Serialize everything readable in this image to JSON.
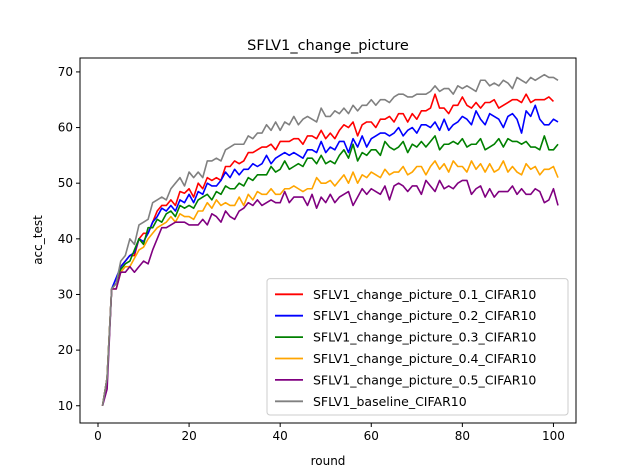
{
  "chart_data": {
    "type": "line",
    "title": "SFLV1_change_picture",
    "xlabel": "round",
    "ylabel": "acc_test",
    "xlim": [
      -3.95,
      104.95
    ],
    "ylim": [
      6.9,
      72.5
    ],
    "xticks": [
      0,
      20,
      40,
      60,
      80,
      100
    ],
    "yticks": [
      10,
      20,
      30,
      40,
      50,
      60,
      70
    ],
    "grid": false,
    "legend_position": "lower right",
    "x_start": 1,
    "x_step": 1,
    "series": [
      {
        "name": "SFLV1_change_picture_0.1_CIFAR10",
        "color": "#ff0000",
        "values": [
          10,
          15,
          31,
          32,
          35,
          36,
          37,
          37,
          40,
          41,
          41,
          43,
          45,
          46,
          46,
          47,
          46,
          48.5,
          48.2,
          49,
          47.5,
          50,
          49,
          51,
          50.5,
          51,
          50.5,
          53,
          53,
          54,
          53.5,
          54,
          55.5,
          55.5,
          56,
          56.5,
          56.5,
          57,
          56,
          57.5,
          57.5,
          57.5,
          58,
          58,
          57,
          58.5,
          58.5,
          58,
          59.5,
          58,
          59,
          58,
          59.5,
          60.5,
          60,
          61,
          58.5,
          60.5,
          61,
          61,
          60,
          61.5,
          61.5,
          62,
          61,
          62.5,
          62.5,
          61,
          62.5,
          61.5,
          63,
          63,
          63.5,
          66,
          63.5,
          63.5,
          62.5,
          64,
          64,
          65.5,
          64,
          63.5,
          64.5,
          63.5,
          64.5,
          64.5,
          65,
          63.5,
          64,
          64.5,
          65,
          65,
          64.5,
          66,
          64.5,
          65,
          65,
          65,
          65.5,
          64.7
        ]
      },
      {
        "name": "SFLV1_change_picture_0.2_CIFAR10",
        "color": "#0000ff",
        "values": [
          10,
          15,
          31,
          33,
          35,
          36,
          37,
          37.5,
          40,
          39.5,
          41,
          43,
          44,
          45.5,
          45,
          46,
          45,
          47,
          46.5,
          48,
          46.5,
          48.5,
          48,
          50,
          49.5,
          49.5,
          50.5,
          52,
          51,
          52.5,
          51.5,
          52.5,
          52.5,
          53.5,
          53,
          53.5,
          55,
          53.5,
          54.5,
          55,
          55.5,
          55,
          55.5,
          55,
          54.5,
          56,
          56,
          55.5,
          57.5,
          55.5,
          56.5,
          56,
          57.5,
          57.5,
          55.5,
          58,
          56.5,
          58.5,
          56.5,
          58,
          58.5,
          59,
          59,
          58.5,
          59,
          60,
          58.5,
          59.5,
          60,
          59,
          60.5,
          60.5,
          60,
          61,
          59.5,
          61.5,
          59.5,
          60.5,
          61,
          62,
          61.5,
          60.5,
          63,
          61.5,
          60.5,
          62.5,
          62,
          61.5,
          60,
          62,
          62.5,
          61.5,
          59,
          63,
          62,
          64,
          61.5,
          60.5,
          60.5,
          61.5,
          61
        ]
      },
      {
        "name": "SFLV1_change_picture_0.3_CIFAR10",
        "color": "#008000",
        "values": [
          10,
          15,
          31,
          32,
          34.5,
          35.5,
          36,
          38,
          40,
          39,
          42,
          42,
          43.5,
          43,
          44.5,
          45,
          44,
          46,
          45.5,
          46,
          45.5,
          47,
          47.5,
          48,
          47,
          48.5,
          48,
          49.5,
          49,
          49,
          50,
          49.5,
          51,
          50.5,
          51.5,
          51.5,
          51.5,
          53,
          52,
          52.5,
          54,
          52.5,
          53,
          53.5,
          53,
          54.5,
          54.5,
          53.5,
          55,
          53.5,
          54,
          53.5,
          55,
          56,
          54.5,
          57,
          54,
          55.5,
          55,
          56,
          56,
          55,
          57.5,
          56.5,
          56,
          56.5,
          57.5,
          55.5,
          57,
          56.5,
          57.5,
          56.5,
          57.5,
          58.5,
          56,
          57,
          57,
          57.5,
          57,
          58,
          56.5,
          57,
          57,
          58,
          56,
          56.5,
          57,
          58,
          56.5,
          58,
          57.5,
          57.5,
          57,
          57.5,
          56.5,
          56.5,
          56,
          58.5,
          56,
          56,
          57
        ]
      },
      {
        "name": "SFLV1_change_picture_0.4_CIFAR10",
        "color": "#ffa500",
        "values": [
          10,
          15,
          31,
          31,
          34,
          35,
          35,
          36.5,
          38,
          38.5,
          40,
          41,
          42,
          42.5,
          43,
          44,
          43,
          44.5,
          44,
          44,
          43.5,
          45,
          45,
          46.5,
          45.5,
          47,
          46,
          46.5,
          46,
          46,
          47.5,
          46,
          48,
          47,
          48.5,
          48,
          48,
          49,
          48,
          48,
          49,
          49,
          49.5,
          49,
          48.5,
          49,
          49,
          51,
          50,
          50,
          50.5,
          49.5,
          50.5,
          51.5,
          50,
          52,
          50,
          51.5,
          51,
          52,
          51.5,
          51,
          52.5,
          51.5,
          52,
          52,
          53,
          51.5,
          52,
          53,
          53,
          51.5,
          53,
          54,
          52.5,
          53.5,
          52,
          54,
          53,
          53,
          52,
          54,
          52.5,
          53.5,
          52,
          53.5,
          52,
          52.5,
          54,
          52,
          53,
          52,
          51.5,
          53.5,
          52.5,
          53,
          51.5,
          52.5,
          52.5,
          53,
          51
        ]
      },
      {
        "name": "SFLV1_change_picture_0.5_CIFAR10",
        "color": "#800080",
        "values": [
          10,
          13,
          31,
          31,
          34,
          34,
          35,
          34,
          35,
          36,
          35.5,
          38,
          40,
          42,
          42,
          42.5,
          43,
          43,
          43,
          42.5,
          42.5,
          42.5,
          43.5,
          42.5,
          44.5,
          44,
          43,
          45,
          44,
          43.5,
          45,
          45.5,
          46.5,
          46,
          47,
          46,
          46.5,
          47,
          46.5,
          46.5,
          48.5,
          46.5,
          47.5,
          47.5,
          47.5,
          46,
          48,
          45.5,
          47.5,
          46.5,
          48,
          46.5,
          47.5,
          48,
          48.5,
          46,
          47.5,
          49,
          48,
          49,
          48.5,
          48,
          49.5,
          47,
          49.5,
          50,
          49.5,
          48.5,
          49.5,
          49.5,
          48,
          50.5,
          49.5,
          48.5,
          50.5,
          49,
          49.5,
          49,
          50,
          50.5,
          50.5,
          48,
          49,
          49.5,
          47.5,
          49,
          47.5,
          48.5,
          48.5,
          48.5,
          49.5,
          48,
          49,
          48,
          48,
          49,
          48.5,
          46.5,
          47,
          49,
          46
        ]
      },
      {
        "name": "SFLV1_baseline_CIFAR10",
        "color": "#808080",
        "values": [
          10,
          15,
          31,
          32,
          36,
          37,
          40,
          39,
          42.5,
          43,
          43.5,
          46.5,
          47,
          47.5,
          47,
          49,
          50,
          51,
          49.5,
          52,
          51,
          52,
          51,
          54,
          54,
          54.5,
          54,
          56,
          56.5,
          57,
          57,
          57,
          58.5,
          58,
          59,
          59,
          60.5,
          59.5,
          61,
          59.5,
          61,
          60.5,
          62,
          60.5,
          61.5,
          62,
          61.5,
          61,
          63.5,
          62,
          62,
          63,
          62.5,
          63.5,
          62.5,
          64,
          63,
          64,
          64,
          65,
          64,
          65,
          65,
          64.5,
          65.5,
          66,
          66,
          65.5,
          65.5,
          66,
          66,
          66,
          66.5,
          67.5,
          66.5,
          67,
          67,
          66,
          67.5,
          67,
          67.5,
          67,
          66.5,
          68.5,
          68.5,
          67.5,
          68,
          67.5,
          68.5,
          68,
          67,
          69,
          68.5,
          68,
          69,
          68.5,
          69,
          69.5,
          69,
          69,
          68.5
        ]
      }
    ]
  }
}
